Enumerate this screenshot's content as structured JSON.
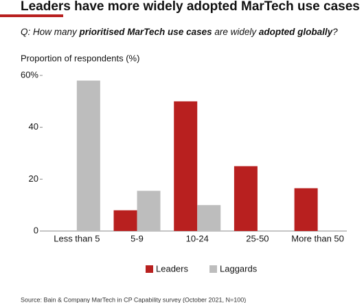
{
  "chart_data": {
    "type": "bar",
    "title": "Leaders have more widely adopted MarTech use cases",
    "subtitle": [
      "Q: How many ",
      "prioritised MarTech use cases",
      " are widely ",
      "adopted globally",
      "?"
    ],
    "y_label": "Proportion of respondents (%)",
    "categories": [
      "Less than 5",
      "5-9",
      "10-24",
      "25-50",
      "More than 50"
    ],
    "series": [
      {
        "name": "Leaders",
        "color": "#b8201f",
        "values": [
          0,
          8,
          50,
          25,
          16.5
        ]
      },
      {
        "name": "Laggards",
        "color": "#bdbdbd",
        "values": [
          58,
          15.5,
          10,
          0,
          0
        ]
      }
    ],
    "ylim": [
      0,
      60
    ],
    "yticks": [
      0,
      20,
      40,
      {
        "value": 60,
        "label": "60%"
      }
    ],
    "legend": "bottom",
    "source": "Source: Bain & Company MarTech in CP Capability survey (October 2021, N=100)"
  }
}
